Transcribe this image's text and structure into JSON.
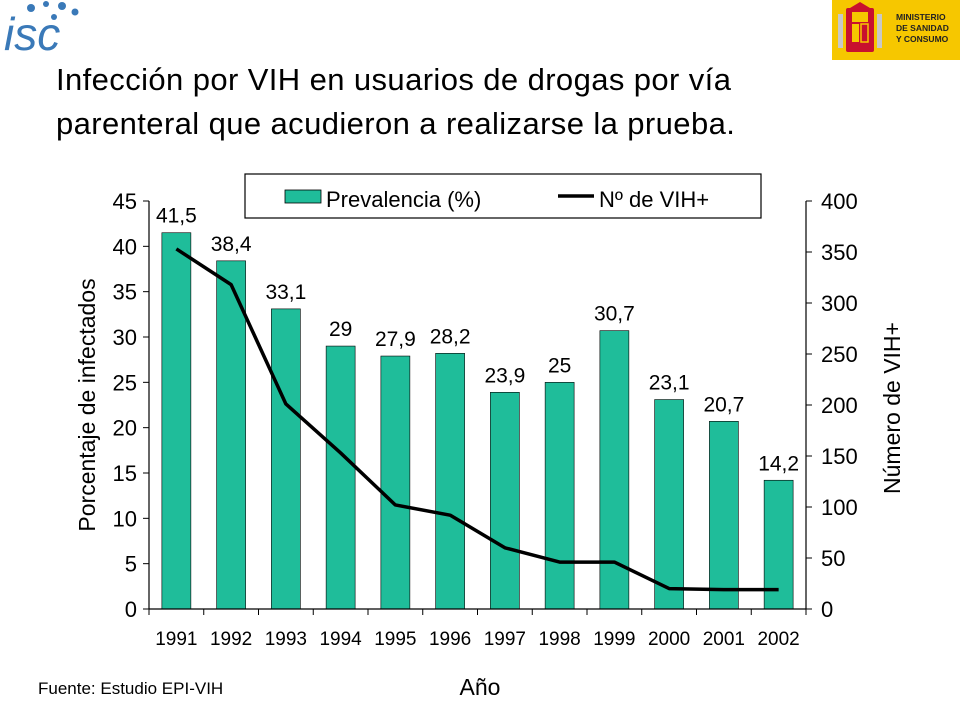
{
  "header": {
    "logo_text": "isc",
    "ministry": {
      "line1": "MINISTERIO",
      "line2": "DE SANIDAD",
      "line3": "Y CONSUMO"
    }
  },
  "title": {
    "line1": "Infección por VIH en usuarios de drogas por vía",
    "line2": "parenteral que acudieron a realizarse la prueba."
  },
  "source": "Fuente: Estudio EPI-VIH",
  "colors": {
    "bar": "#1fbd9a",
    "line": "#000000"
  },
  "chart_data": {
    "type": "bar",
    "categories": [
      "1991",
      "1992",
      "1993",
      "1994",
      "1995",
      "1996",
      "1997",
      "1998",
      "1999",
      "2000",
      "2001",
      "2002"
    ],
    "series": [
      {
        "name": "Prevalencia (%)",
        "type": "bar",
        "axis": "left",
        "values": [
          41.5,
          38.4,
          33.1,
          29,
          27.9,
          28.2,
          23.9,
          25,
          30.7,
          23.1,
          20.7,
          14.2
        ],
        "labels": [
          "41,5",
          "38,4",
          "33,1",
          "29",
          "27,9",
          "28,2",
          "23,9",
          "25",
          "30,7",
          "23,1",
          "20,7",
          "14,2"
        ]
      },
      {
        "name": "Nº de VIH+",
        "type": "line",
        "axis": "right",
        "values": [
          353,
          318,
          201,
          153,
          102,
          92,
          60,
          46,
          46,
          20,
          19,
          19
        ]
      }
    ],
    "xlabel": "Año",
    "ylabel": "Porcentaje de infectados",
    "y2label": "Número de VIH+",
    "ylim": [
      0,
      45
    ],
    "y2lim": [
      0,
      400
    ],
    "yticks": [
      "0",
      "5",
      "10",
      "15",
      "20",
      "25",
      "30",
      "35",
      "40",
      "45"
    ],
    "y2ticks": [
      "0",
      "50",
      "100",
      "150",
      "200",
      "250",
      "300",
      "350",
      "400"
    ],
    "legend": "top",
    "grid": false
  }
}
